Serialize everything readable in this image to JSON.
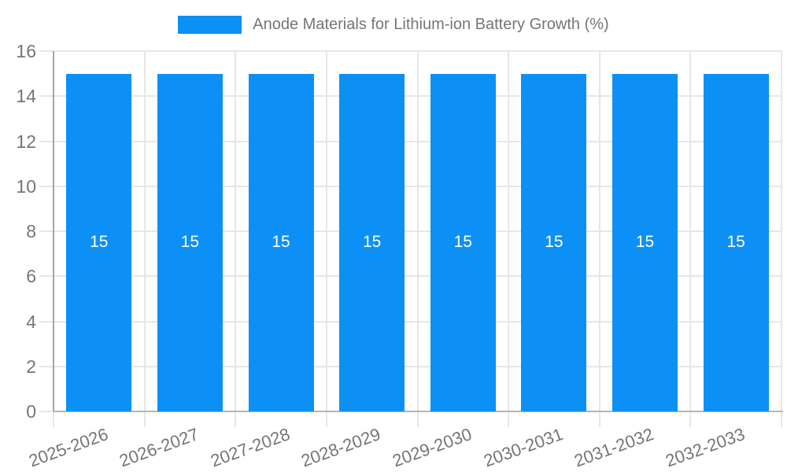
{
  "chart_data": {
    "type": "bar",
    "title": "Anode Materials for Lithium-ion Battery Growth (%)",
    "categories": [
      "2025-2026",
      "2026-2027",
      "2027-2028",
      "2028-2029",
      "2029-2030",
      "2030-2031",
      "2031-2032",
      "2032-2033"
    ],
    "values": [
      15,
      15,
      15,
      15,
      15,
      15,
      15,
      15
    ],
    "bar_labels": [
      "15",
      "15",
      "15",
      "15",
      "15",
      "15",
      "15",
      "15"
    ],
    "xlabel": "",
    "ylabel": "",
    "ylim": [
      0,
      16
    ],
    "ytick_step": 2,
    "ytick_labels": [
      "0",
      "2",
      "4",
      "6",
      "8",
      "10",
      "12",
      "14",
      "16"
    ],
    "grid": true,
    "legend_position": "top-center",
    "bar_label_position": "middle"
  },
  "colors": {
    "bar": "#0d90f5",
    "bar_label": "#ffffff",
    "tick_text": "#757575",
    "legend_text": "#757575",
    "grid": "#e6e6e6",
    "y_axis_line": "#a6a6a6",
    "x_axis_line": "#b5b5b5",
    "background": "#ffffff"
  }
}
